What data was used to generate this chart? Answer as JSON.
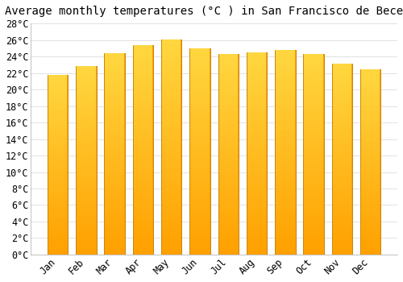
{
  "title": "Average monthly temperatures (°C ) in San Francisco de Becerra",
  "months": [
    "Jan",
    "Feb",
    "Mar",
    "Apr",
    "May",
    "Jun",
    "Jul",
    "Aug",
    "Sep",
    "Oct",
    "Nov",
    "Dec"
  ],
  "values": [
    21.8,
    22.8,
    24.4,
    25.4,
    26.1,
    25.0,
    24.3,
    24.5,
    24.8,
    24.3,
    23.1,
    22.4
  ],
  "bar_color_top": "#FFD740",
  "bar_color_bottom": "#FFA000",
  "bar_edge_color": "#C8860A",
  "ylim": [
    0,
    28
  ],
  "ytick_step": 2,
  "background_color": "#FFFFFF",
  "grid_color": "#DDDDDD",
  "title_fontsize": 10,
  "tick_fontsize": 8.5,
  "font_family": "monospace"
}
